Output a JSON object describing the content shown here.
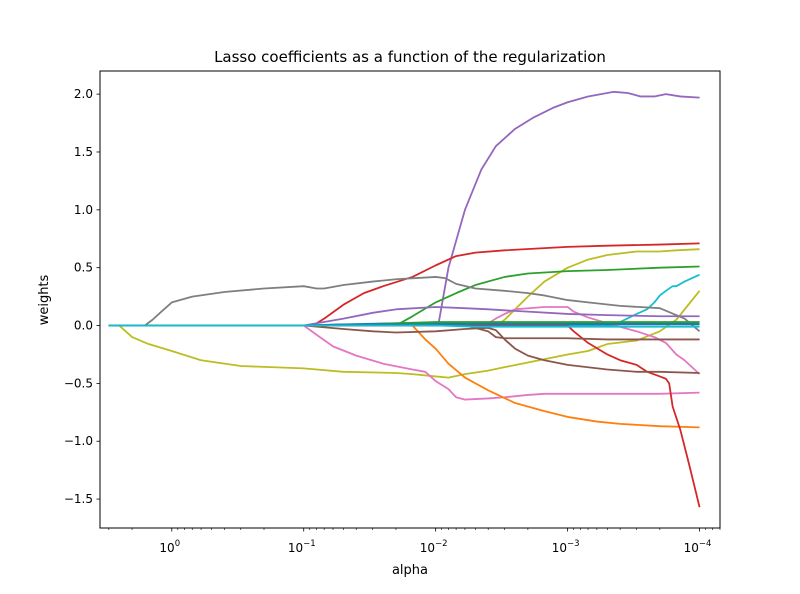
{
  "chart_data": {
    "type": "line",
    "title": "Lasso coefficients as a function of the regularization",
    "xlabel": "alpha",
    "ylabel": "weights",
    "xscale": "log",
    "x_inverted": true,
    "xlim": [
      3.5,
      7e-05
    ],
    "ylim": [
      -1.75,
      2.2
    ],
    "x_ticks": [
      {
        "value": 1,
        "label": "10^0"
      },
      {
        "value": 0.1,
        "label": "10^-1"
      },
      {
        "value": 0.01,
        "label": "10^-2"
      },
      {
        "value": 0.001,
        "label": "10^-3"
      },
      {
        "value": 0.0001,
        "label": "10^-4"
      }
    ],
    "y_ticks": [
      {
        "value": -1.5,
        "label": "−1.5"
      },
      {
        "value": -1.0,
        "label": "−1.0"
      },
      {
        "value": -0.5,
        "label": "−0.5"
      },
      {
        "value": 0.0,
        "label": "0.0"
      },
      {
        "value": 0.5,
        "label": "0.5"
      },
      {
        "value": 1.0,
        "label": "1.0"
      },
      {
        "value": 1.5,
        "label": "1.5"
      },
      {
        "value": 2.0,
        "label": "2.0"
      }
    ],
    "grid": false,
    "legend": "none",
    "series": [
      {
        "color": "#9467bd",
        "points": [
          [
            3,
            0
          ],
          [
            0.01,
            0
          ],
          [
            0.0095,
            0.02
          ],
          [
            0.008,
            0.5
          ],
          [
            0.006,
            1.0
          ],
          [
            0.0045,
            1.35
          ],
          [
            0.0035,
            1.55
          ],
          [
            0.0025,
            1.7
          ],
          [
            0.0018,
            1.8
          ],
          [
            0.0013,
            1.88
          ],
          [
            0.001,
            1.93
          ],
          [
            0.0007,
            1.98
          ],
          [
            0.00045,
            2.02
          ],
          [
            0.00035,
            2.01
          ],
          [
            0.00028,
            1.98
          ],
          [
            0.00022,
            1.98
          ],
          [
            0.00018,
            2.0
          ],
          [
            0.00014,
            1.98
          ],
          [
            0.0001,
            1.97
          ]
        ]
      },
      {
        "color": "#d62728",
        "points": [
          [
            3,
            0
          ],
          [
            0.085,
            0
          ],
          [
            0.07,
            0.06
          ],
          [
            0.05,
            0.18
          ],
          [
            0.035,
            0.28
          ],
          [
            0.025,
            0.34
          ],
          [
            0.015,
            0.42
          ],
          [
            0.01,
            0.52
          ],
          [
            0.007,
            0.6
          ],
          [
            0.005,
            0.63
          ],
          [
            0.003,
            0.65
          ],
          [
            0.001,
            0.68
          ],
          [
            0.0005,
            0.69
          ],
          [
            0.0002,
            0.7
          ],
          [
            0.0001,
            0.71
          ]
        ]
      },
      {
        "color": "#bcbd22",
        "points": [
          [
            3,
            0
          ],
          [
            0.0035,
            0
          ],
          [
            0.003,
            0.05
          ],
          [
            0.002,
            0.25
          ],
          [
            0.0015,
            0.38
          ],
          [
            0.001,
            0.5
          ],
          [
            0.0007,
            0.57
          ],
          [
            0.0005,
            0.61
          ],
          [
            0.0003,
            0.64
          ],
          [
            0.0002,
            0.64
          ],
          [
            0.00015,
            0.65
          ],
          [
            0.0001,
            0.66
          ]
        ]
      },
      {
        "color": "#2ca02c",
        "points": [
          [
            3,
            0
          ],
          [
            0.02,
            0
          ],
          [
            0.015,
            0.08
          ],
          [
            0.01,
            0.2
          ],
          [
            0.007,
            0.28
          ],
          [
            0.005,
            0.35
          ],
          [
            0.003,
            0.42
          ],
          [
            0.002,
            0.45
          ],
          [
            0.001,
            0.47
          ],
          [
            0.0005,
            0.48
          ],
          [
            0.0002,
            0.5
          ],
          [
            0.0001,
            0.51
          ]
        ]
      },
      {
        "color": "#17becf",
        "points": [
          [
            3,
            0
          ],
          [
            0.00045,
            0
          ],
          [
            0.0004,
            0.03
          ],
          [
            0.0003,
            0.1
          ],
          [
            0.00025,
            0.14
          ],
          [
            0.00022,
            0.2
          ],
          [
            0.0002,
            0.26
          ],
          [
            0.00018,
            0.3
          ],
          [
            0.00016,
            0.34
          ],
          [
            0.00015,
            0.34
          ],
          [
            0.00013,
            0.38
          ],
          [
            0.0001,
            0.44
          ]
        ]
      },
      {
        "color": "#7f7f7f",
        "points": [
          [
            3,
            0
          ],
          [
            1.6,
            0
          ],
          [
            1.4,
            0.05
          ],
          [
            1.2,
            0.12
          ],
          [
            1,
            0.2
          ],
          [
            0.7,
            0.25
          ],
          [
            0.4,
            0.29
          ],
          [
            0.2,
            0.32
          ],
          [
            0.1,
            0.34
          ],
          [
            0.08,
            0.32
          ],
          [
            0.07,
            0.32
          ],
          [
            0.05,
            0.35
          ],
          [
            0.03,
            0.38
          ],
          [
            0.02,
            0.4
          ],
          [
            0.01,
            0.42
          ],
          [
            0.0085,
            0.41
          ],
          [
            0.007,
            0.36
          ],
          [
            0.005,
            0.32
          ],
          [
            0.003,
            0.3
          ],
          [
            0.002,
            0.28
          ],
          [
            0.0015,
            0.26
          ],
          [
            0.001,
            0.22
          ],
          [
            0.0007,
            0.2
          ],
          [
            0.0004,
            0.17
          ],
          [
            0.0002,
            0.15
          ],
          [
            0.00013,
            0.06
          ],
          [
            0.0001,
            -0.05
          ]
        ]
      },
      {
        "color": "#bcbd22",
        "points": [
          [
            3,
            0
          ],
          [
            2.5,
            0
          ],
          [
            2,
            -0.1
          ],
          [
            1.5,
            -0.16
          ],
          [
            1,
            -0.22
          ],
          [
            0.6,
            -0.3
          ],
          [
            0.3,
            -0.35
          ],
          [
            0.1,
            -0.37
          ],
          [
            0.05,
            -0.4
          ],
          [
            0.02,
            -0.41
          ],
          [
            0.015,
            -0.42
          ],
          [
            0.01,
            -0.44
          ],
          [
            0.008,
            -0.45
          ],
          [
            0.006,
            -0.42
          ],
          [
            0.004,
            -0.39
          ],
          [
            0.003,
            -0.36
          ],
          [
            0.002,
            -0.32
          ],
          [
            0.001,
            -0.25
          ],
          [
            0.0007,
            -0.22
          ],
          [
            0.0005,
            -0.16
          ],
          [
            0.0003,
            -0.13
          ],
          [
            0.0002,
            -0.05
          ],
          [
            0.00015,
            0.05
          ],
          [
            0.0001,
            0.3
          ]
        ]
      },
      {
        "color": "#e377c2",
        "points": [
          [
            3,
            0
          ],
          [
            0.1,
            0
          ],
          [
            0.08,
            -0.08
          ],
          [
            0.06,
            -0.18
          ],
          [
            0.04,
            -0.26
          ],
          [
            0.025,
            -0.33
          ],
          [
            0.015,
            -0.38
          ],
          [
            0.012,
            -0.4
          ],
          [
            0.01,
            -0.48
          ],
          [
            0.008,
            -0.55
          ],
          [
            0.007,
            -0.62
          ],
          [
            0.006,
            -0.64
          ],
          [
            0.004,
            -0.63
          ],
          [
            0.003,
            -0.62
          ],
          [
            0.002,
            -0.6
          ],
          [
            0.0015,
            -0.59
          ],
          [
            0.001,
            -0.59
          ],
          [
            0.0005,
            -0.59
          ],
          [
            0.0002,
            -0.59
          ],
          [
            0.0001,
            -0.58
          ]
        ]
      },
      {
        "color": "#e377c2",
        "points": [
          [
            3,
            0
          ],
          [
            0.0045,
            0
          ],
          [
            0.004,
            0.02
          ],
          [
            0.0035,
            0.06
          ],
          [
            0.003,
            0.1
          ],
          [
            0.0025,
            0.14
          ],
          [
            0.0015,
            0.16
          ],
          [
            0.001,
            0.16
          ],
          [
            0.0009,
            0.12
          ],
          [
            0.0007,
            0.07
          ],
          [
            0.0005,
            0.02
          ],
          [
            0.0003,
            -0.05
          ],
          [
            0.00022,
            -0.1
          ],
          [
            0.00018,
            -0.15
          ],
          [
            0.00015,
            -0.25
          ],
          [
            0.00013,
            -0.3
          ],
          [
            0.0001,
            -0.42
          ]
        ]
      },
      {
        "color": "#ff7f0e",
        "points": [
          [
            3,
            0
          ],
          [
            0.015,
            0
          ],
          [
            0.012,
            -0.12
          ],
          [
            0.01,
            -0.2
          ],
          [
            0.008,
            -0.33
          ],
          [
            0.006,
            -0.45
          ],
          [
            0.004,
            -0.56
          ],
          [
            0.0025,
            -0.67
          ],
          [
            0.0015,
            -0.74
          ],
          [
            0.001,
            -0.79
          ],
          [
            0.0006,
            -0.83
          ],
          [
            0.0004,
            -0.85
          ],
          [
            0.0002,
            -0.87
          ],
          [
            0.0001,
            -0.88
          ]
        ]
      },
      {
        "color": "#d62728",
        "points": [
          [
            3,
            0
          ],
          [
            0.001,
            0
          ],
          [
            0.0009,
            -0.05
          ],
          [
            0.0007,
            -0.15
          ],
          [
            0.0005,
            -0.25
          ],
          [
            0.0004,
            -0.3
          ],
          [
            0.0003,
            -0.34
          ],
          [
            0.00025,
            -0.4
          ],
          [
            0.0002,
            -0.44
          ],
          [
            0.00018,
            -0.46
          ],
          [
            0.00017,
            -0.5
          ],
          [
            0.00016,
            -0.7
          ],
          [
            0.00014,
            -0.9
          ],
          [
            0.00012,
            -1.2
          ],
          [
            0.0001,
            -1.57
          ]
        ]
      },
      {
        "color": "#8c564b",
        "points": [
          [
            3,
            0
          ],
          [
            0.1,
            0
          ],
          [
            0.05,
            -0.03
          ],
          [
            0.03,
            -0.05
          ],
          [
            0.02,
            -0.06
          ],
          [
            0.01,
            -0.05
          ],
          [
            0.006,
            -0.03
          ],
          [
            0.004,
            -0.02
          ],
          [
            0.0035,
            -0.04
          ],
          [
            0.003,
            -0.12
          ],
          [
            0.0025,
            -0.2
          ],
          [
            0.002,
            -0.26
          ],
          [
            0.0015,
            -0.3
          ],
          [
            0.001,
            -0.34
          ],
          [
            0.0005,
            -0.38
          ],
          [
            0.0003,
            -0.4
          ],
          [
            0.0002,
            -0.4
          ],
          [
            0.0001,
            -0.41
          ]
        ]
      },
      {
        "color": "#8c564b",
        "points": [
          [
            3,
            0
          ],
          [
            0.006,
            0
          ],
          [
            0.005,
            -0.02
          ],
          [
            0.004,
            -0.05
          ],
          [
            0.0035,
            -0.1
          ],
          [
            0.003,
            -0.11
          ],
          [
            0.002,
            -0.11
          ],
          [
            0.001,
            -0.11
          ],
          [
            0.0005,
            -0.12
          ],
          [
            0.0002,
            -0.12
          ],
          [
            0.0001,
            -0.12
          ]
        ]
      },
      {
        "color": "#9467bd",
        "points": [
          [
            3,
            0
          ],
          [
            0.1,
            0
          ],
          [
            0.05,
            0.06
          ],
          [
            0.03,
            0.11
          ],
          [
            0.02,
            0.14
          ],
          [
            0.01,
            0.16
          ],
          [
            0.006,
            0.15
          ],
          [
            0.004,
            0.14
          ],
          [
            0.002,
            0.12
          ],
          [
            0.001,
            0.1
          ],
          [
            0.0005,
            0.09
          ],
          [
            0.0002,
            0.08
          ],
          [
            0.0001,
            0.08
          ]
        ]
      },
      {
        "color": "#1f77b4",
        "points": [
          [
            3,
            0
          ],
          [
            0.1,
            0
          ],
          [
            0.05,
            0.01
          ],
          [
            0.02,
            0.02
          ],
          [
            0.01,
            0.02
          ],
          [
            0.001,
            0.02
          ],
          [
            0.0001,
            0.02
          ]
        ]
      },
      {
        "color": "#2ca02c",
        "points": [
          [
            3,
            0
          ],
          [
            0.05,
            0
          ],
          [
            0.02,
            0.02
          ],
          [
            0.01,
            0.03
          ],
          [
            0.001,
            0.03
          ],
          [
            0.0001,
            0.03
          ]
        ]
      },
      {
        "color": "#1f77b4",
        "points": [
          [
            3,
            0
          ],
          [
            0.1,
            0
          ],
          [
            0.05,
            0.01
          ],
          [
            0.01,
            0.01
          ],
          [
            0.001,
            0.01
          ],
          [
            0.0001,
            0.01
          ]
        ]
      },
      {
        "color": "#17becf",
        "points": [
          [
            3,
            0
          ],
          [
            0.01,
            0
          ],
          [
            0.005,
            -0.01
          ],
          [
            0.001,
            -0.01
          ],
          [
            0.0001,
            -0.01
          ]
        ]
      }
    ]
  }
}
